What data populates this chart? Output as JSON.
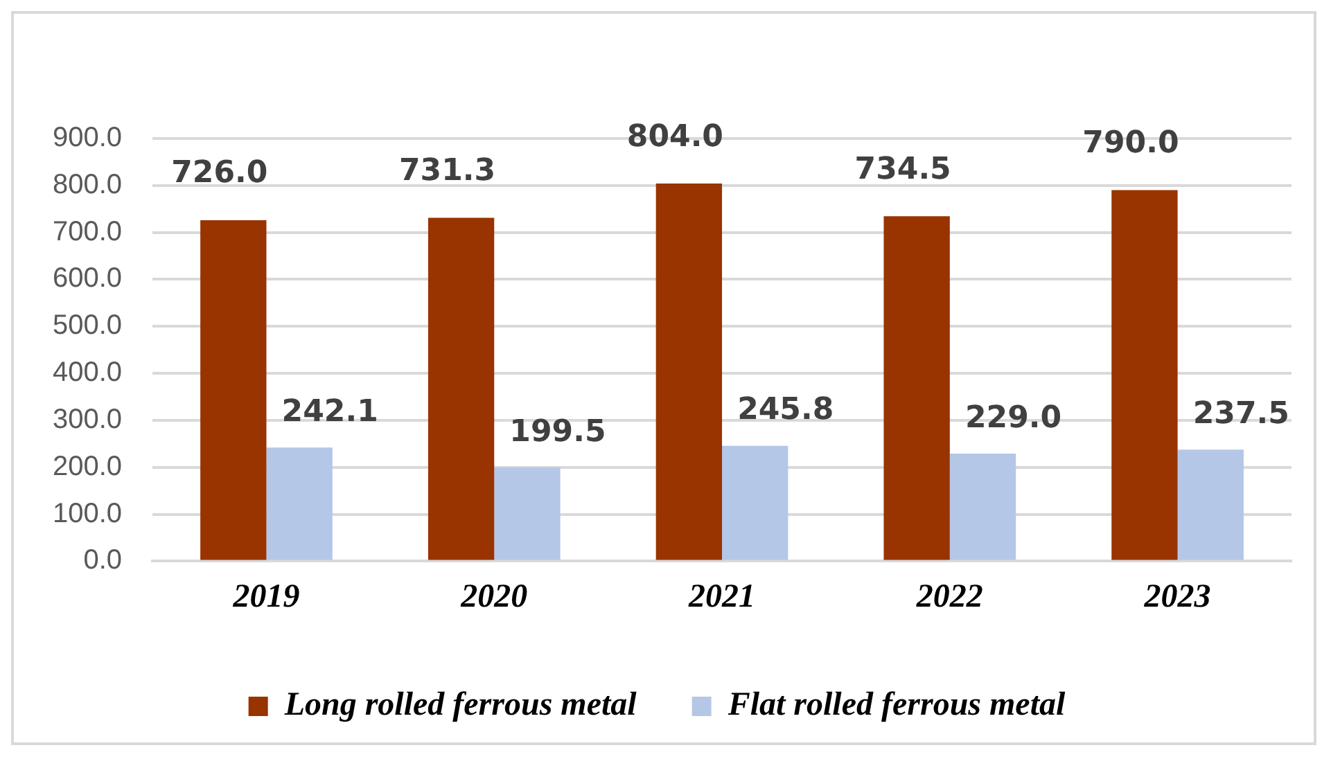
{
  "chart_data": {
    "type": "bar",
    "categories": [
      "2019",
      "2020",
      "2021",
      "2022",
      "2023"
    ],
    "series": [
      {
        "name": "Long rolled ferrous metal",
        "color": "#993300",
        "values": [
          726.0,
          731.3,
          804.0,
          734.5,
          790.0
        ],
        "value_labels": [
          "726.0",
          "731.3",
          "804.0",
          "734.5",
          "790.0"
        ]
      },
      {
        "name": "Flat rolled ferrous metal",
        "color": "#b4c7e7",
        "values": [
          242.1,
          199.5,
          245.8,
          229.0,
          237.5
        ],
        "value_labels": [
          "242.1",
          "199.5",
          "245.8",
          "229.0",
          "237.5"
        ]
      }
    ],
    "ylim": [
      0,
      900
    ],
    "yticks": [
      {
        "value": 0,
        "label": "0.0"
      },
      {
        "value": 100,
        "label": "100.0"
      },
      {
        "value": 200,
        "label": "200.0"
      },
      {
        "value": 300,
        "label": "300.0"
      },
      {
        "value": 400,
        "label": "400.0"
      },
      {
        "value": 500,
        "label": "500.0"
      },
      {
        "value": 600,
        "label": "600.0"
      },
      {
        "value": 700,
        "label": "700.0"
      },
      {
        "value": 800,
        "label": "800.0"
      },
      {
        "value": 900,
        "label": "900.0"
      }
    ],
    "grid": "y",
    "legend": "bottom"
  }
}
